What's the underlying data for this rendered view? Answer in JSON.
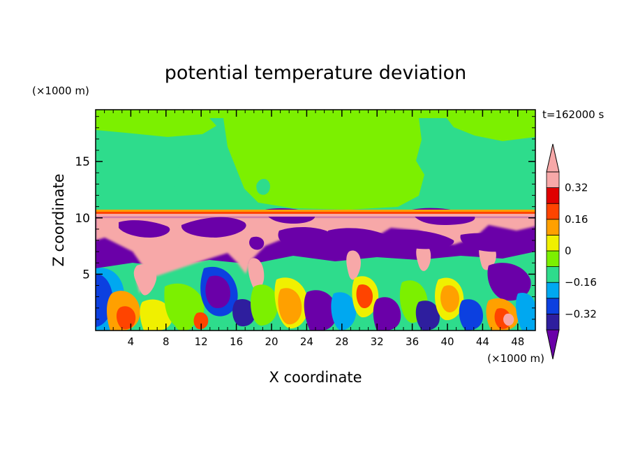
{
  "chart_data": {
    "type": "heatmap",
    "title": "potential temperature deviation",
    "xlabel": "X coordinate",
    "ylabel": "Z coordinate",
    "x_unit": "(×1000 m)",
    "y_unit": "(×1000 m)",
    "time_label": "t=162000 s",
    "xlim": [
      0,
      50
    ],
    "ylim": [
      0,
      19.6
    ],
    "x_ticks": [
      4,
      8,
      12,
      16,
      20,
      24,
      28,
      32,
      36,
      40,
      44,
      48
    ],
    "y_ticks": [
      5,
      10,
      15
    ],
    "colorbar": {
      "tick_labels": [
        "0.32",
        "0.16",
        "0",
        "−0.16",
        "−0.32"
      ],
      "tick_values": [
        0.32,
        0.16,
        0,
        -0.16,
        -0.32
      ],
      "levels": [
        -0.4,
        -0.32,
        -0.24,
        -0.16,
        -0.08,
        0,
        0.08,
        0.16,
        0.24,
        0.32,
        0.4
      ],
      "colors": [
        "#6a00a8",
        "#2e1e9e",
        "#0c40e0",
        "#00a8f0",
        "#2edc8c",
        "#7cf000",
        "#f0f000",
        "#ffa000",
        "#ff4400",
        "#e00000",
        "#f7a8a8"
      ],
      "extend": "both"
    }
  }
}
